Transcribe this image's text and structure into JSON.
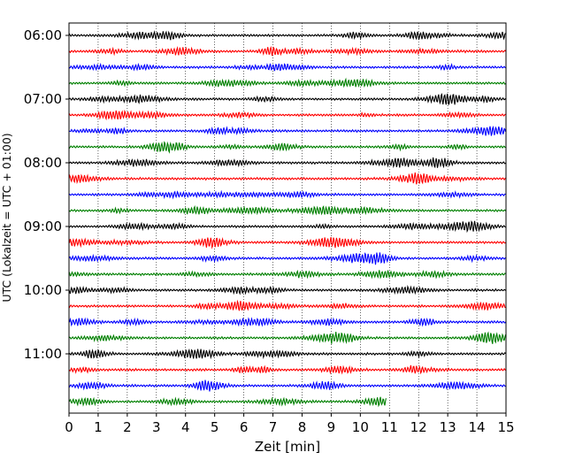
{
  "chart_data": {
    "type": "line",
    "title": "",
    "xlabel": "Zeit  [min]",
    "ylabel": "UTC (Lokalzeit = UTC + 01:00)",
    "xlim": [
      0,
      15
    ],
    "x_ticks": [
      "0",
      "1",
      "2",
      "3",
      "4",
      "5",
      "6",
      "7",
      "8",
      "9",
      "10",
      "11",
      "12",
      "13",
      "14",
      "15"
    ],
    "y_tick_labels": [
      "06:00",
      "07:00",
      "08:00",
      "09:00",
      "10:00",
      "11:00"
    ],
    "grid": "vertical-dotted",
    "trace_colors": [
      "#000000",
      "#ff0000",
      "#0000ff",
      "#008000"
    ],
    "traces": [
      {
        "start": "06:00",
        "end_min": 15
      },
      {
        "start": "06:15",
        "end_min": 15
      },
      {
        "start": "06:30",
        "end_min": 15
      },
      {
        "start": "06:45",
        "end_min": 15
      },
      {
        "start": "07:00",
        "end_min": 15
      },
      {
        "start": "07:15",
        "end_min": 15
      },
      {
        "start": "07:30",
        "end_min": 15
      },
      {
        "start": "07:45",
        "end_min": 15
      },
      {
        "start": "08:00",
        "end_min": 15
      },
      {
        "start": "08:15",
        "end_min": 15
      },
      {
        "start": "08:30",
        "end_min": 15
      },
      {
        "start": "08:45",
        "end_min": 15
      },
      {
        "start": "09:00",
        "end_min": 15
      },
      {
        "start": "09:15",
        "end_min": 15
      },
      {
        "start": "09:30",
        "end_min": 15
      },
      {
        "start": "09:45",
        "end_min": 15
      },
      {
        "start": "10:00",
        "end_min": 15
      },
      {
        "start": "10:15",
        "end_min": 15
      },
      {
        "start": "10:30",
        "end_min": 15
      },
      {
        "start": "10:45",
        "end_min": 15
      },
      {
        "start": "11:00",
        "end_min": 15
      },
      {
        "start": "11:15",
        "end_min": 15
      },
      {
        "start": "11:30",
        "end_min": 15
      },
      {
        "start": "11:45",
        "end_min": 10.9
      }
    ]
  }
}
